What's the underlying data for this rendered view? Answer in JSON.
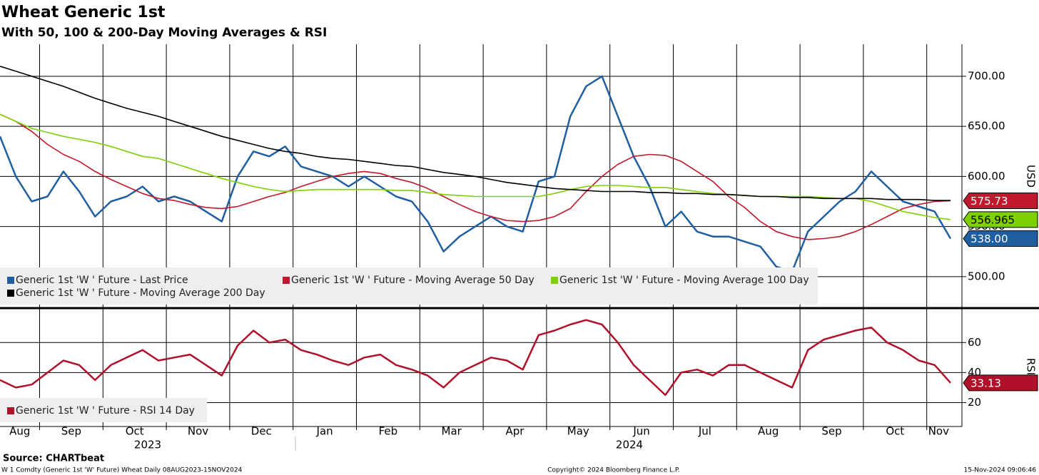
{
  "chart_data": [
    {
      "type": "line",
      "title": "Wheat Generic 1st",
      "subtitle": "With 50, 100 & 200-Day Moving Averages & RSI",
      "y_label": "USD",
      "categories": [
        "Aug",
        null,
        null,
        "Sep",
        null,
        null,
        null,
        "Oct",
        null,
        null,
        null,
        "Nov",
        null,
        null,
        null,
        "Dec",
        null,
        null,
        null,
        "Jan",
        null,
        null,
        null,
        "Feb",
        null,
        null,
        null,
        "Mar",
        null,
        null,
        null,
        "Apr",
        null,
        null,
        null,
        "May",
        null,
        null,
        null,
        "Jun",
        null,
        null,
        null,
        "Jul",
        null,
        null,
        null,
        "Aug",
        null,
        null,
        null,
        "Sep",
        null,
        null,
        null,
        "Oct",
        null,
        null,
        null,
        "Nov",
        null
      ],
      "years": [
        "2023",
        "2024"
      ],
      "ylim": [
        470,
        732
      ],
      "yticks": [
        {
          "value": 500,
          "label": "500.00"
        },
        {
          "value": 550,
          "label": "550.00"
        },
        {
          "value": 600,
          "label": "600.00"
        },
        {
          "value": 650,
          "label": "650.00"
        },
        {
          "value": 700,
          "label": "700.00"
        }
      ],
      "grid": true,
      "series": [
        {
          "name": "Generic 1st 'W ' Future - Last Price",
          "color": "#1f5fa0",
          "last_label": "538.00",
          "values": [
            640,
            600,
            575,
            580,
            605,
            585,
            560,
            575,
            580,
            590,
            575,
            580,
            575,
            565,
            555,
            600,
            625,
            620,
            630,
            610,
            605,
            600,
            590,
            600,
            590,
            580,
            575,
            555,
            525,
            540,
            550,
            560,
            550,
            545,
            595,
            600,
            660,
            690,
            700,
            660,
            620,
            590,
            550,
            565,
            545,
            540,
            540,
            535,
            530,
            510,
            505,
            545,
            560,
            575,
            585,
            605,
            590,
            575,
            570,
            565,
            538
          ]
        },
        {
          "name": "Generic 1st 'W ' Future - Moving Average 50 Day",
          "color": "#c0182e",
          "values": [
            662,
            655,
            645,
            632,
            622,
            615,
            605,
            597,
            590,
            583,
            578,
            576,
            572,
            569,
            568,
            570,
            575,
            580,
            584,
            590,
            595,
            600,
            603,
            605,
            603,
            598,
            594,
            588,
            580,
            572,
            565,
            560,
            556,
            555,
            556,
            560,
            568,
            585,
            600,
            612,
            620,
            622,
            621,
            615,
            605,
            595,
            580,
            569,
            555,
            545,
            540,
            537,
            538,
            540,
            545,
            552,
            560,
            568,
            572,
            575,
            575.73
          ]
        },
        {
          "name": "Generic 1st 'W ' Future - Moving Average 100 Day",
          "color": "#7fd000",
          "values": [
            662,
            655,
            648,
            644,
            640,
            637,
            634,
            630,
            625,
            620,
            618,
            613,
            608,
            603,
            598,
            594,
            590,
            587,
            585,
            586,
            587,
            587,
            587,
            587,
            587,
            586,
            586,
            584,
            582,
            581,
            580,
            580,
            580,
            580,
            580,
            583,
            587,
            590,
            591,
            591,
            590,
            589,
            589,
            587,
            585,
            583,
            582,
            581,
            580,
            580,
            580,
            580,
            579,
            578,
            578,
            575,
            570,
            565,
            562,
            559,
            556.965
          ]
        },
        {
          "name": "Generic 1st 'W ' Future - Moving Average 200 Day",
          "color": "#000000",
          "values": [
            710,
            705,
            700,
            695,
            690,
            684,
            678,
            673,
            668,
            664,
            660,
            655,
            650,
            645,
            640,
            636,
            632,
            628,
            625,
            623,
            620,
            618,
            617,
            615,
            613,
            611,
            610,
            607,
            604,
            602,
            600,
            597,
            594,
            592,
            590,
            588,
            587,
            586,
            585,
            585,
            585,
            584,
            584,
            583,
            583,
            582,
            582,
            581,
            580,
            580,
            579,
            579,
            578,
            578,
            578,
            578,
            577,
            577,
            577,
            576,
            576
          ]
        }
      ]
    },
    {
      "type": "line",
      "y_label": "RSI",
      "ylim": [
        5,
        82
      ],
      "yticks": [
        20,
        40,
        60
      ],
      "grid": true,
      "series": [
        {
          "name": "Generic 1st 'W ' Future - RSI 14 Day",
          "color": "#b0102a",
          "values": [
            35,
            30,
            32,
            40,
            48,
            45,
            35,
            45,
            50,
            55,
            48,
            50,
            52,
            45,
            38,
            58,
            68,
            60,
            62,
            55,
            52,
            48,
            45,
            50,
            52,
            45,
            42,
            38,
            30,
            40,
            45,
            50,
            48,
            42,
            65,
            68,
            72,
            75,
            72,
            60,
            45,
            35,
            25,
            40,
            42,
            38,
            45,
            45,
            40,
            35,
            30,
            55,
            62,
            65,
            68,
            70,
            60,
            55,
            48,
            45,
            33.13
          ]
        }
      ]
    }
  ],
  "footer": {
    "source": "Source: CHARTbeat",
    "description": "W 1 Comdty (Generic 1st 'W' Future) Wheat  Daily 08AUG2023-15NOV2024",
    "copyright": "Copyright© 2024 Bloomberg Finance L.P.",
    "timestamp": "15-Nov-2024 09:06:46"
  }
}
